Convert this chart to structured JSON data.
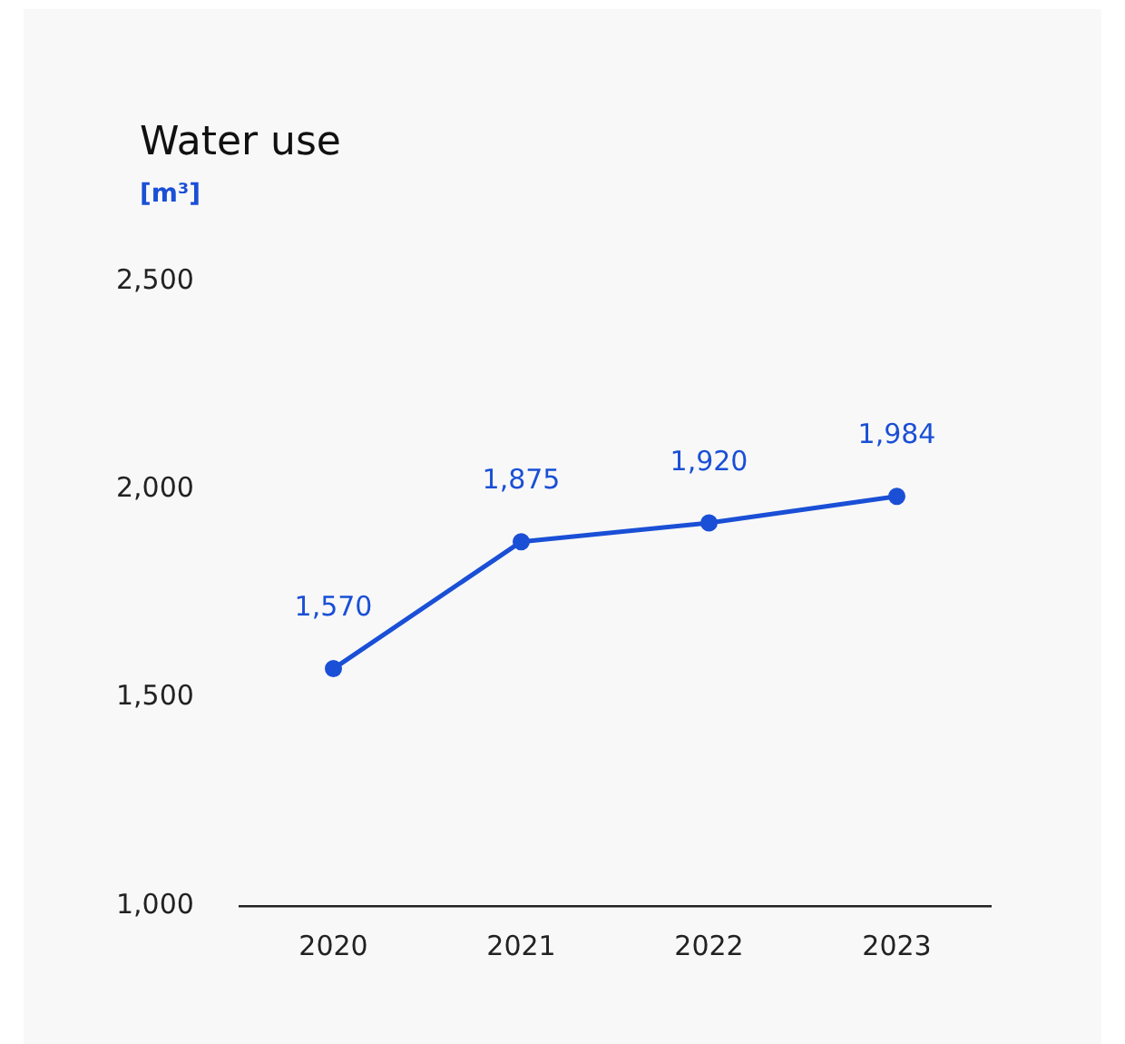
{
  "chart_data": {
    "type": "line",
    "title": "Water use",
    "ylabel": "[m³]",
    "categories": [
      "2020",
      "2021",
      "2022",
      "2023"
    ],
    "series": [
      {
        "color": "#1a4fd6",
        "values": [
          1570,
          1875,
          1920,
          1984
        ],
        "value_labels": [
          "1,570",
          "1,875",
          "1,920",
          "1,984"
        ]
      }
    ],
    "ylim": [
      1000,
      2500
    ],
    "yticks": [
      {
        "value": 1000,
        "label": "1,000"
      },
      {
        "value": 1500,
        "label": "1,500"
      },
      {
        "value": 2000,
        "label": "2,000"
      },
      {
        "value": 2500,
        "label": "2,500"
      }
    ],
    "grid": false,
    "legend": false,
    "marker": "circle",
    "line_style": "solid"
  }
}
